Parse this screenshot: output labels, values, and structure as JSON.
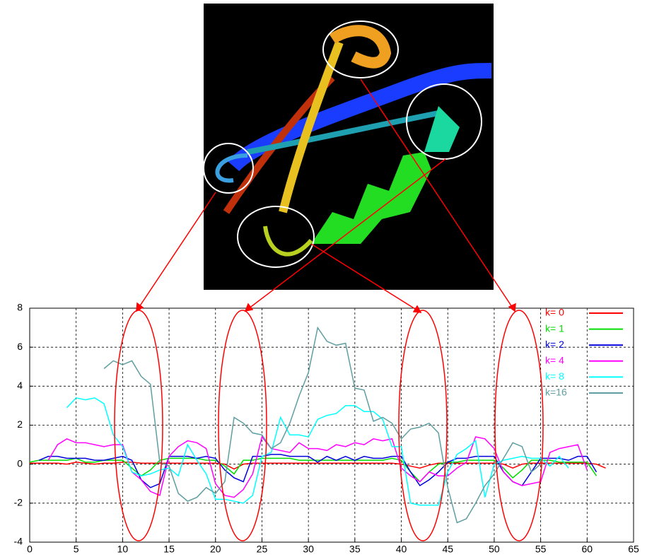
{
  "chart_data": {
    "type": "line",
    "xlim": [
      0,
      65
    ],
    "xticks": [
      0,
      5,
      10,
      15,
      20,
      25,
      30,
      35,
      40,
      45,
      50,
      55,
      60,
      65
    ],
    "ylim": [
      -4,
      8
    ],
    "yticks": [
      -4,
      -2,
      0,
      2,
      4,
      6,
      8
    ],
    "grid": true,
    "legend": "upper right",
    "series": [
      {
        "name": "k= 0",
        "color": "#ff0000",
        "x": [
          0,
          1,
          2,
          3,
          4,
          5,
          6,
          7,
          8,
          9,
          10,
          11,
          12,
          13,
          14,
          15,
          16,
          17,
          18,
          19,
          20,
          21,
          22,
          23,
          24,
          25,
          26,
          27,
          28,
          29,
          30,
          31,
          32,
          33,
          34,
          35,
          36,
          37,
          38,
          39,
          40,
          41,
          42,
          43,
          44,
          45,
          46,
          47,
          48,
          49,
          50,
          51,
          52,
          53,
          54,
          55,
          56,
          57,
          58,
          59,
          60,
          61,
          62
        ],
        "values": [
          0.05,
          0.05,
          0.05,
          0.05,
          0,
          0.1,
          0.05,
          0,
          0.05,
          0.05,
          0.1,
          0.1,
          0.05,
          0.05,
          0.05,
          0.05,
          0.05,
          0.05,
          0.05,
          0.05,
          0.05,
          0,
          -0.25,
          0,
          0.05,
          0.05,
          0.05,
          0.05,
          0.05,
          0.05,
          0.05,
          0.05,
          0.05,
          0.05,
          0.05,
          0.05,
          0.05,
          0.05,
          0.05,
          0.05,
          0,
          -0.1,
          -0.2,
          -0.05,
          0.05,
          0.05,
          0.05,
          0.05,
          0.05,
          0.05,
          0.05,
          0,
          -0.2,
          0,
          0.05,
          0.05,
          0.05,
          0.05,
          0.05,
          0.05,
          0.05,
          0,
          -0.2
        ]
      },
      {
        "name": "k= 1",
        "color": "#00dd00",
        "x": [
          0,
          1,
          2,
          3,
          4,
          5,
          6,
          7,
          8,
          9,
          10,
          11,
          12,
          13,
          14,
          15,
          16,
          17,
          18,
          19,
          20,
          21,
          22,
          23,
          24,
          25,
          26,
          27,
          28,
          29,
          30,
          31,
          32,
          33,
          34,
          35,
          36,
          37,
          38,
          39,
          40,
          41,
          42,
          43,
          44,
          45,
          46,
          47,
          48,
          49,
          50,
          51,
          52,
          53,
          54,
          55,
          56,
          57,
          58,
          59,
          60,
          61
        ],
        "values": [
          0.1,
          0.2,
          0.2,
          0.2,
          0.2,
          0.3,
          0.1,
          0.1,
          0.2,
          0.2,
          0.2,
          -0.2,
          -0.6,
          -0.3,
          0.2,
          0.3,
          0.3,
          0.3,
          0.3,
          0.2,
          0.2,
          -0.1,
          -0.5,
          0.2,
          0.2,
          0.3,
          0.3,
          0.3,
          0.3,
          0.2,
          0.2,
          0.2,
          0.2,
          0.2,
          0.2,
          0.2,
          0.2,
          0.2,
          0.2,
          0.3,
          0.2,
          -0.4,
          -0.9,
          -0.4,
          0,
          0.1,
          0.1,
          0.2,
          0.2,
          0.2,
          0.2,
          -0.2,
          -0.7,
          -0.3,
          0.2,
          0.2,
          0.2,
          0.1,
          0.1,
          0.1,
          0.1,
          -0.6
        ]
      },
      {
        "name": "k= 2",
        "color": "#0000dd",
        "x": [
          1,
          2,
          3,
          4,
          5,
          6,
          7,
          8,
          9,
          10,
          11,
          12,
          13,
          14,
          15,
          16,
          17,
          18,
          19,
          20,
          21,
          22,
          23,
          24,
          25,
          26,
          27,
          28,
          29,
          30,
          31,
          32,
          33,
          34,
          35,
          36,
          37,
          38,
          39,
          40,
          41,
          42,
          43,
          44,
          45,
          46,
          47,
          48,
          49,
          50,
          51,
          52,
          53,
          54,
          55,
          56,
          57,
          58,
          59,
          60,
          61
        ],
        "values": [
          0.2,
          0.4,
          0.4,
          0.3,
          0.3,
          0.3,
          0.2,
          0.2,
          0.3,
          0.4,
          0.2,
          -0.8,
          -1.2,
          -1.0,
          0.4,
          0.4,
          0.4,
          0.3,
          0.4,
          0.3,
          -0.3,
          -0.7,
          -0.9,
          0.4,
          0.4,
          0.5,
          0.5,
          0.4,
          0.4,
          0.4,
          0.1,
          0.4,
          0.2,
          0.4,
          0.2,
          0.4,
          0.3,
          0.3,
          0.4,
          0.4,
          -0.4,
          -1.1,
          -0.8,
          -0.4,
          0.1,
          0.3,
          0.3,
          0.4,
          0.4,
          0.4,
          -0.4,
          -0.9,
          -1.1,
          -0.4,
          0.3,
          0.3,
          0.3,
          0.2,
          0.4,
          0.4,
          -0.4
        ]
      },
      {
        "name": "k= 4",
        "color": "#ff00ff",
        "x": [
          2,
          3,
          4,
          5,
          6,
          7,
          8,
          9,
          10,
          11,
          12,
          13,
          14,
          15,
          16,
          17,
          18,
          19,
          20,
          21,
          22,
          23,
          24,
          25,
          26,
          27,
          28,
          29,
          30,
          31,
          32,
          33,
          34,
          35,
          36,
          37,
          38,
          39,
          40,
          41,
          42,
          43,
          44,
          45,
          46,
          47,
          48,
          49,
          50,
          51,
          52,
          53,
          54,
          55,
          56,
          57,
          58,
          59,
          60
        ],
        "values": [
          0.2,
          1.0,
          1.3,
          1.1,
          1.1,
          1.0,
          0.9,
          1.0,
          1.0,
          -0.4,
          -0.8,
          -1.4,
          -1.6,
          0.4,
          0.9,
          1.2,
          1.1,
          0.8,
          -1.0,
          -1.6,
          -1.7,
          -1.3,
          -0.5,
          1.4,
          0.8,
          0.7,
          0.6,
          1.1,
          0.8,
          0.8,
          0.7,
          1.0,
          0.9,
          1.1,
          1.0,
          1.3,
          1.2,
          1.3,
          -0.2,
          -0.6,
          -0.9,
          -0.4,
          -0.6,
          -0.6,
          -0.2,
          0.1,
          1.4,
          1.3,
          0.8,
          -0.4,
          -0.9,
          -1.1,
          -1.0,
          -0.9,
          0.6,
          0.8,
          0.9,
          1.0,
          -0.3
        ]
      },
      {
        "name": "k= 8",
        "color": "#00ffff",
        "x": [
          4,
          5,
          6,
          7,
          8,
          9,
          10,
          11,
          12,
          13,
          14,
          15,
          16,
          17,
          18,
          19,
          20,
          21,
          22,
          23,
          24,
          25,
          26,
          27,
          28,
          29,
          30,
          31,
          32,
          33,
          34,
          35,
          36,
          37,
          38,
          39,
          40,
          41,
          42,
          43,
          44,
          45,
          46,
          47,
          48,
          49,
          50,
          51,
          52,
          53,
          54,
          55,
          56,
          57,
          58
        ],
        "values": [
          2.9,
          3.4,
          3.3,
          3.4,
          3.1,
          1.5,
          0.9,
          -0.4,
          -0.6,
          -0.5,
          -0.3,
          -0.2,
          -0.6,
          1.0,
          0.2,
          -0.5,
          -1.8,
          -1.8,
          -1.9,
          -2.0,
          -1.6,
          0.4,
          0.6,
          2.4,
          1.5,
          1.5,
          1.4,
          2.3,
          2.5,
          2.6,
          3.0,
          3.0,
          2.7,
          2.7,
          2.3,
          0.9,
          0.9,
          -2.0,
          -2.1,
          -2.1,
          -2.1,
          -0.4,
          0.5,
          0.8,
          1.2,
          -1.7,
          0.0,
          0.2,
          0.3,
          0.4,
          0.3,
          0.3,
          -0.1,
          0.4,
          -0.2
        ]
      },
      {
        "name": "k=16",
        "color": "#5f9ea0",
        "x": [
          8,
          9,
          10,
          11,
          12,
          13,
          14,
          15,
          16,
          17,
          18,
          19,
          20,
          21,
          22,
          23,
          24,
          25,
          26,
          27,
          28,
          29,
          30,
          31,
          32,
          33,
          34,
          35,
          36,
          37,
          38,
          39,
          40,
          41,
          42,
          43,
          44,
          45,
          46,
          47,
          48,
          49,
          50,
          51,
          52,
          53,
          54,
          55
        ],
        "values": [
          4.9,
          5.3,
          5.1,
          5.3,
          4.5,
          4.1,
          0.1,
          -0.1,
          -1.5,
          -1.9,
          -1.7,
          -1.2,
          -1.5,
          -0.9,
          2.4,
          2.1,
          1.6,
          1.5,
          0.8,
          1.1,
          2.1,
          3.5,
          4.7,
          7.0,
          6.3,
          6.1,
          6.2,
          3.9,
          3.8,
          2.2,
          2.4,
          2.1,
          1.3,
          1.8,
          1.9,
          2.1,
          1.6,
          -1.2,
          -3.0,
          -2.8,
          -2.0,
          -1.1,
          -0.5,
          0.3,
          1.1,
          0.9,
          -0.4,
          0.0
        ]
      }
    ]
  }
}
